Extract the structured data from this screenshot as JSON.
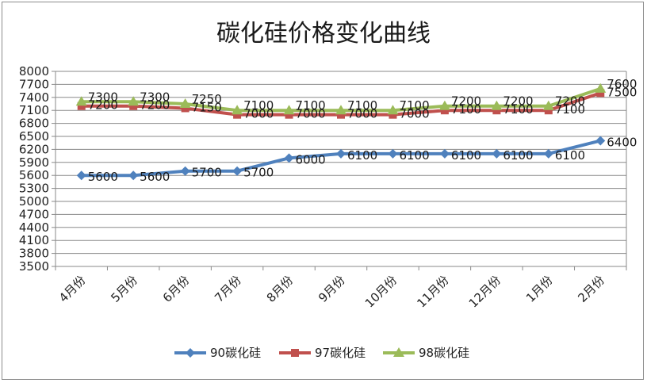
{
  "chart_data": {
    "type": "line",
    "title": "碳化硅价格变化曲线",
    "xlabel": "",
    "ylabel": "",
    "categories": [
      "4月份",
      "5月份",
      "6月份",
      "7月份",
      "8月份",
      "9月份",
      "10月份",
      "11月份",
      "12月份",
      "1月份",
      "2月份"
    ],
    "ylim": [
      3500,
      8000
    ],
    "ytick_step": 300,
    "grid": true,
    "legend_position": "bottom",
    "series": [
      {
        "name": "90碳化硅",
        "color": "#4f81bd",
        "marker": "diamond",
        "values": [
          5600,
          5600,
          5700,
          5700,
          6000,
          6100,
          6100,
          6100,
          6100,
          6100,
          6400
        ]
      },
      {
        "name": "97碳化硅",
        "color": "#c0504d",
        "marker": "square",
        "values": [
          7200,
          7200,
          7150,
          7000,
          7000,
          7000,
          7000,
          7100,
          7100,
          7100,
          7500
        ]
      },
      {
        "name": "98碳化硅",
        "color": "#9bbb59",
        "marker": "triangle",
        "values": [
          7300,
          7300,
          7250,
          7100,
          7100,
          7100,
          7100,
          7200,
          7200,
          7200,
          7600
        ]
      }
    ]
  }
}
